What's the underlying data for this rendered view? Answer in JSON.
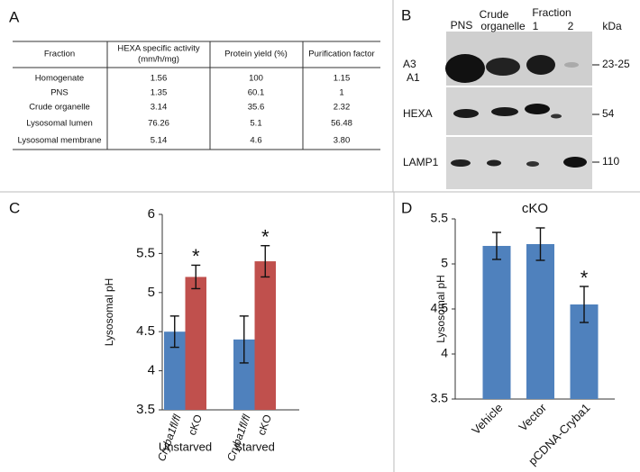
{
  "panels": [
    "A",
    "B",
    "C",
    "D"
  ],
  "table": {
    "header": [
      [
        "Fraction"
      ],
      [
        "HEXA specific activity",
        "(mm/h/mg)"
      ],
      [
        "Protein yield (%)"
      ],
      [
        "Purification factor"
      ]
    ],
    "rows": [
      [
        "Homogenate",
        "1.56",
        "100",
        "1.15"
      ],
      [
        "PNS",
        "1.35",
        "60.1",
        "1"
      ],
      [
        "Crude organelle",
        "3.14",
        "35.6",
        "2.32"
      ],
      [
        "Lysosomal lumen",
        "76.26",
        "5.1",
        "56.48"
      ],
      [
        "Lysosomal membrane",
        "5.14",
        "4.6",
        "3.80"
      ]
    ]
  },
  "blot": {
    "lane_labels": [
      "PNS",
      "Crude",
      "organelle",
      "Fraction",
      "1",
      "2"
    ],
    "unit": "kDa",
    "rows": [
      {
        "labels": [
          "A3",
          "A1"
        ],
        "size": "23-25"
      },
      {
        "labels": [
          "HEXA"
        ],
        "size": "54"
      },
      {
        "labels": [
          "LAMP1"
        ],
        "size": "110"
      }
    ]
  },
  "chart_data": [
    {
      "type": "bar",
      "y_label": "Lysosomal pH",
      "categories": [
        "Unstarved",
        "Starved"
      ],
      "series": [
        {
          "name": "Cryba1fl/fl",
          "color": "#4f81bd",
          "values": [
            4.5,
            4.4
          ],
          "errors": [
            0.2,
            0.3
          ],
          "annotations": [
            null,
            null
          ]
        },
        {
          "name": "cKO",
          "color": "#c0504d",
          "values": [
            5.2,
            5.4
          ],
          "errors": [
            0.15,
            0.2
          ],
          "annotations": [
            "*",
            "*"
          ]
        }
      ],
      "ylim": [
        3.5,
        6
      ],
      "yticks": [
        3.5,
        4,
        4.5,
        5,
        5.5,
        6
      ]
    },
    {
      "type": "bar",
      "title": "cKO",
      "y_label": "Lysosomal pH",
      "categories": [
        "Vehicle",
        "Vector",
        "pCDNA-Cryba1"
      ],
      "series": [
        {
          "color": "#4f81bd",
          "values": [
            5.2,
            5.22,
            4.55
          ],
          "errors": [
            0.15,
            0.18,
            0.2
          ],
          "annotations": [
            null,
            null,
            "*"
          ]
        }
      ],
      "ylim": [
        3.5,
        5.5
      ],
      "yticks": [
        3.5,
        4,
        4.5,
        5,
        5.5
      ]
    }
  ]
}
